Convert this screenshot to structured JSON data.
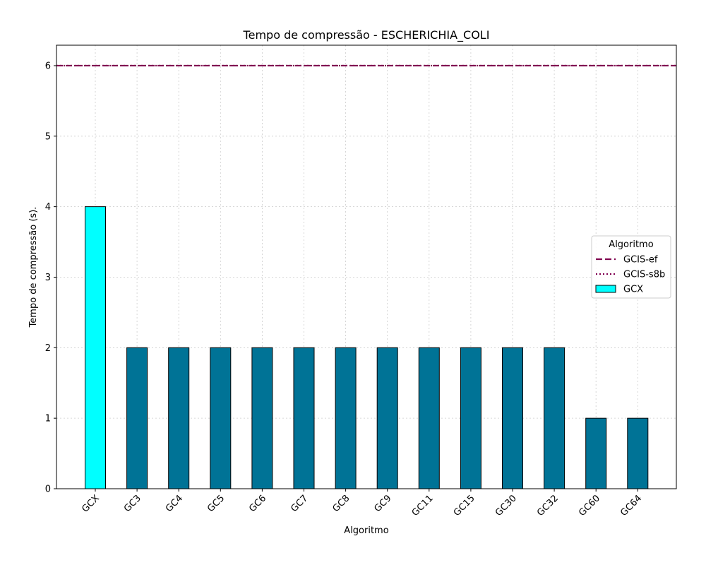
{
  "chart_data": {
    "type": "bar",
    "title": "Tempo de compressão -  ESCHERICHIA_COLI",
    "xlabel": "Algoritmo",
    "ylabel": "Tempo de compressão (s).",
    "categories": [
      "GCX",
      "GC3",
      "GC4",
      "GC5",
      "GC6",
      "GC7",
      "GC8",
      "GC9",
      "GC11",
      "GC15",
      "GC30",
      "GC32",
      "GC60",
      "GC64"
    ],
    "values": [
      4,
      2,
      2,
      2,
      2,
      2,
      2,
      2,
      2,
      2,
      2,
      2,
      1,
      1
    ],
    "bar_colors": [
      "#00ffff",
      "#007396",
      "#007396",
      "#007396",
      "#007396",
      "#007396",
      "#007396",
      "#007396",
      "#007396",
      "#007396",
      "#007396",
      "#007396",
      "#007396",
      "#007396"
    ],
    "ylim": [
      0,
      6.29
    ],
    "yticks": [
      0,
      1,
      2,
      3,
      4,
      5,
      6
    ],
    "grid": true,
    "reference_lines": [
      {
        "name": "GCIS-ef",
        "value": 6,
        "style": "dashed",
        "color": "#800050"
      },
      {
        "name": "GCIS-s8b",
        "value": 6,
        "style": "dotted",
        "color": "#800050"
      }
    ],
    "legend": {
      "title": "Algoritmo",
      "placement": "center-right",
      "entries": [
        {
          "label": "GCIS-ef",
          "kind": "dashed-line",
          "color": "#800050"
        },
        {
          "label": "GCIS-s8b",
          "kind": "dotted-line",
          "color": "#800050"
        },
        {
          "label": "GCX",
          "kind": "patch",
          "color": "#00ffff"
        }
      ]
    }
  }
}
